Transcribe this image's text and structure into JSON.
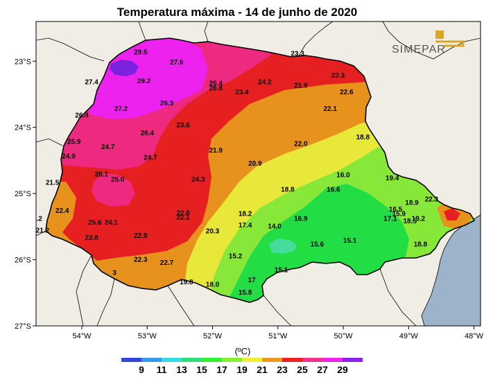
{
  "title": "Temperatura máxima - 14 de junho de 2020",
  "logo_text": "SIMEPAR",
  "legend": {
    "unit": "(ºC)",
    "labels": [
      "9",
      "11",
      "13",
      "15",
      "17",
      "19",
      "21",
      "23",
      "25",
      "27",
      "29"
    ],
    "colors": [
      "#3344dd",
      "#3399ee",
      "#33dddd",
      "#33dd77",
      "#33ee33",
      "#88ee33",
      "#eeee33",
      "#ee9922",
      "#ee2222",
      "#ee3388",
      "#ee22ee",
      "#8822ee"
    ]
  },
  "axes": {
    "lat_labels": [
      "23°S",
      "24°S",
      "25°S",
      "26°S",
      "27°S"
    ],
    "lon_labels": [
      "54°W",
      "53°W",
      "52°W",
      "51°W",
      "50°W",
      "49°W",
      "48°W"
    ]
  },
  "colors": {
    "land_bg": "#f0ede4",
    "ocean": "#9db3c9",
    "purple": "#7a22dd",
    "magenta": "#ee22ee",
    "pink": "#ee2a80",
    "red": "#e62020",
    "orange": "#e8921e",
    "yellow": "#e8e83a",
    "light_green": "#88e83a",
    "green": "#3de83a",
    "bright_green": "#22dd44",
    "cyan": "#44dd99"
  },
  "stations": [
    {
      "value": "29.5",
      "lon": -53.1,
      "lat": -22.9
    },
    {
      "value": "27.6",
      "lon": -52.55,
      "lat": -23.05
    },
    {
      "value": "27.4",
      "lon": -53.85,
      "lat": -23.35
    },
    {
      "value": "29.2",
      "lon": -53.05,
      "lat": -23.33
    },
    {
      "value": "25.4",
      "lon": -51.95,
      "lat": -23.37
    },
    {
      "value": "26.8",
      "lon": -51.95,
      "lat": -23.44
    },
    {
      "value": "24.2",
      "lon": -51.2,
      "lat": -23.35
    },
    {
      "value": "23.3",
      "lon": -50.7,
      "lat": -22.92
    },
    {
      "value": "22.3",
      "lon": -50.08,
      "lat": -23.25
    },
    {
      "value": "21.9",
      "lon": -50.65,
      "lat": -23.4
    },
    {
      "value": "22.6",
      "lon": -49.95,
      "lat": -23.5
    },
    {
      "value": "23.4",
      "lon": -51.55,
      "lat": -23.5
    },
    {
      "value": "27.2",
      "lon": -53.4,
      "lat": -23.75
    },
    {
      "value": "26.3",
      "lon": -52.7,
      "lat": -23.67
    },
    {
      "value": "22.1",
      "lon": -50.2,
      "lat": -23.75
    },
    {
      "value": "26.4",
      "lon": -54.0,
      "lat": -23.85
    },
    {
      "value": "23.6",
      "lon": -52.45,
      "lat": -24.0
    },
    {
      "value": "26.4",
      "lon": -53.0,
      "lat": -24.12
    },
    {
      "value": "25.9",
      "lon": -54.12,
      "lat": -24.25
    },
    {
      "value": "24.7",
      "lon": -53.6,
      "lat": -24.33
    },
    {
      "value": "22.0",
      "lon": -50.65,
      "lat": -24.28
    },
    {
      "value": "18.8",
      "lon": -49.7,
      "lat": -24.18
    },
    {
      "value": "21.9",
      "lon": -51.95,
      "lat": -24.38
    },
    {
      "value": "24.9",
      "lon": -54.2,
      "lat": -24.47
    },
    {
      "value": "24.7",
      "lon": -52.95,
      "lat": -24.49
    },
    {
      "value": "20.9",
      "lon": -51.35,
      "lat": -24.58
    },
    {
      "value": "26.1",
      "lon": -53.7,
      "lat": -24.74
    },
    {
      "value": "25.0",
      "lon": -53.45,
      "lat": -24.82
    },
    {
      "value": "24.3",
      "lon": -52.22,
      "lat": -24.82
    },
    {
      "value": "16.0",
      "lon": -50.0,
      "lat": -24.75
    },
    {
      "value": "19.4",
      "lon": -49.25,
      "lat": -24.8
    },
    {
      "value": "21.5",
      "lon": -54.45,
      "lat": -24.87
    },
    {
      "value": "18.8",
      "lon": -50.85,
      "lat": -24.97
    },
    {
      "value": "16.6",
      "lon": -50.15,
      "lat": -24.97
    },
    {
      "value": "18.9",
      "lon": -48.95,
      "lat": -25.17
    },
    {
      "value": "22.3",
      "lon": -48.65,
      "lat": -25.12
    },
    {
      "value": "22.4",
      "lon": -54.3,
      "lat": -25.29
    },
    {
      "value": "16.5",
      "lon": -49.2,
      "lat": -25.27
    },
    {
      "value": "18.2",
      "lon": -51.5,
      "lat": -25.34
    },
    {
      "value": "22.6",
      "lon": -52.45,
      "lat": -25.33
    },
    {
      "value": "22.1",
      "lon": -52.45,
      "lat": -25.39
    },
    {
      "value": "15.9",
      "lon": -49.15,
      "lat": -25.34
    },
    {
      "value": "17.1",
      "lon": -49.28,
      "lat": -25.41
    },
    {
      "value": "19.2",
      "lon": -48.85,
      "lat": -25.41
    },
    {
      "value": "18.5",
      "lon": -48.98,
      "lat": -25.45
    },
    {
      "value": ".2",
      "lon": -54.65,
      "lat": -25.41
    },
    {
      "value": "16.9",
      "lon": -50.65,
      "lat": -25.41
    },
    {
      "value": "25.6",
      "lon": -53.8,
      "lat": -25.47
    },
    {
      "value": "24.1",
      "lon": -53.55,
      "lat": -25.47
    },
    {
      "value": "17.4",
      "lon": -51.5,
      "lat": -25.51
    },
    {
      "value": "14.0",
      "lon": -51.05,
      "lat": -25.53
    },
    {
      "value": "21.2",
      "lon": -54.6,
      "lat": -25.59
    },
    {
      "value": "20.3",
      "lon": -52.0,
      "lat": -25.6
    },
    {
      "value": "22.9",
      "lon": -53.1,
      "lat": -25.67
    },
    {
      "value": "23.8",
      "lon": -53.85,
      "lat": -25.7
    },
    {
      "value": "15.1",
      "lon": -49.9,
      "lat": -25.74
    },
    {
      "value": "15.6",
      "lon": -50.4,
      "lat": -25.8
    },
    {
      "value": "18.8",
      "lon": -48.82,
      "lat": -25.8
    },
    {
      "value": "15.2",
      "lon": -51.65,
      "lat": -25.98
    },
    {
      "value": "22.3",
      "lon": -53.1,
      "lat": -26.03
    },
    {
      "value": "22.7",
      "lon": -52.7,
      "lat": -26.08
    },
    {
      "value": "15.1",
      "lon": -50.95,
      "lat": -26.19
    },
    {
      "value": "19.8",
      "lon": -52.4,
      "lat": -26.37
    },
    {
      "value": "18.0",
      "lon": -52.0,
      "lat": -26.41
    },
    {
      "value": "17",
      "lon": -51.4,
      "lat": -26.34
    },
    {
      "value": "15.8",
      "lon": -51.5,
      "lat": -26.53
    },
    {
      "value": "3",
      "lon": -53.5,
      "lat": -26.23
    }
  ]
}
